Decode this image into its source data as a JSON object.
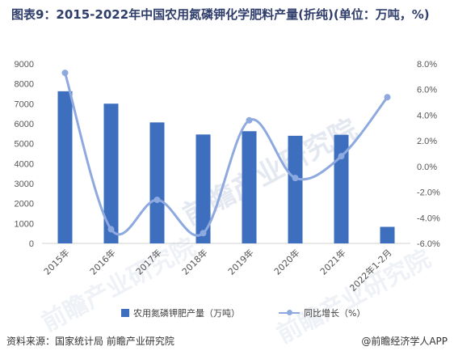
{
  "title": "图表9：2015-2022年中国农用氮磷钾化学肥料产量(折纯)(单位：万吨，%)",
  "source": "资料来源：国家统计局 前瞻产业研究院",
  "brand": "@前瞻经济学人APP",
  "watermark": "前瞻产业研究院",
  "colors": {
    "bar": "#3e6fbf",
    "line": "#8ea9e0"
  },
  "chart_data": {
    "type": "bar",
    "categories": [
      "2015年",
      "2016年",
      "2017年",
      "2018年",
      "2019年",
      "2020年",
      "2021年",
      "2022年1-2月"
    ],
    "series": [
      {
        "name": "农用氮磷钾肥产量（万吨）",
        "type": "bar",
        "axis": "left",
        "values": [
          7627,
          7005,
          6066,
          5460,
          5625,
          5396,
          5446,
          830
        ]
      },
      {
        "name": "同比增长（%）",
        "type": "line",
        "axis": "right",
        "values": [
          7.3,
          -4.9,
          -2.6,
          -5.2,
          3.6,
          -0.9,
          0.8,
          5.4
        ]
      }
    ],
    "y_left": {
      "min": 0,
      "max": 9000,
      "step": 1000,
      "ticks": [
        "0",
        "1000",
        "2000",
        "3000",
        "4000",
        "5000",
        "6000",
        "7000",
        "8000",
        "9000"
      ]
    },
    "y_right": {
      "min": -6,
      "max": 8,
      "step": 2,
      "ticks": [
        "-6.0%",
        "-4.0%",
        "-2.0%",
        "0.0%",
        "2.0%",
        "4.0%",
        "6.0%",
        "8.0%"
      ]
    },
    "grid": false,
    "legend_position": "bottom"
  }
}
